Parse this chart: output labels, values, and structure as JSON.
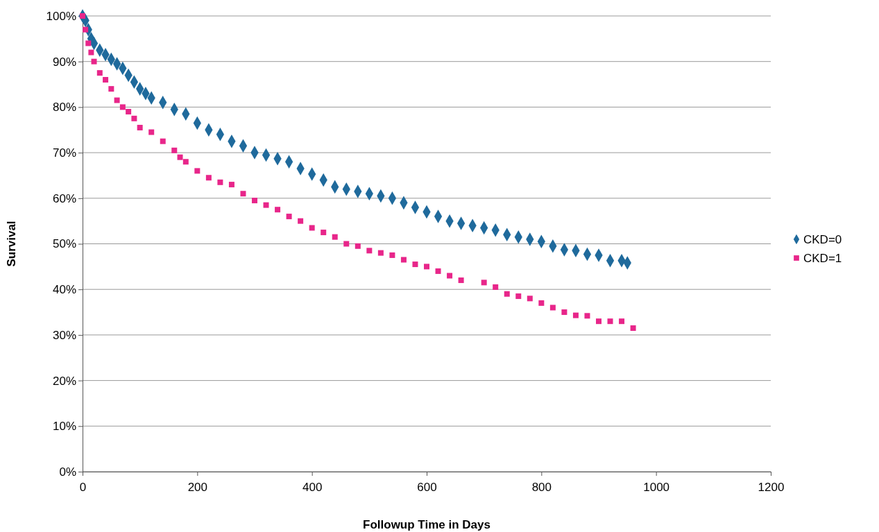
{
  "chart_data": {
    "type": "scatter",
    "xlabel": "Followup Time in Days",
    "ylabel": "Survival",
    "xlim": [
      0,
      1200
    ],
    "xticks": [
      0,
      200,
      400,
      600,
      800,
      1000,
      1200
    ],
    "ylim": [
      0,
      100
    ],
    "yticks": [
      {
        "value": 0,
        "label": "0%"
      },
      {
        "value": 10,
        "label": "10%"
      },
      {
        "value": 20,
        "label": "20%"
      },
      {
        "value": 30,
        "label": "30%"
      },
      {
        "value": 40,
        "label": "40%"
      },
      {
        "value": 50,
        "label": "50%"
      },
      {
        "value": 60,
        "label": "60%"
      },
      {
        "value": 70,
        "label": "70%"
      },
      {
        "value": 80,
        "label": "80%"
      },
      {
        "value": 90,
        "label": "90%"
      },
      {
        "value": 100,
        "label": "100%"
      }
    ],
    "grid": "y",
    "legend": "right",
    "series": [
      {
        "name": "CKD=0",
        "color": "#1f6a9c",
        "marker": "diamond",
        "x": [
          0,
          5,
          10,
          15,
          20,
          30,
          40,
          50,
          60,
          70,
          80,
          90,
          100,
          110,
          120,
          140,
          160,
          180,
          200,
          220,
          240,
          260,
          280,
          300,
          320,
          340,
          360,
          380,
          400,
          420,
          440,
          460,
          480,
          500,
          520,
          540,
          560,
          580,
          600,
          620,
          640,
          660,
          680,
          700,
          720,
          740,
          760,
          780,
          800,
          820,
          840,
          860,
          880,
          900,
          920,
          940,
          950
        ],
        "values": [
          100,
          99,
          97,
          95,
          94,
          92.5,
          91.5,
          90.5,
          89.5,
          88.5,
          87,
          85.5,
          84,
          83,
          82,
          81,
          79.5,
          78.5,
          76.5,
          75,
          74,
          72.5,
          71.5,
          70,
          69.5,
          68.7,
          68,
          66.5,
          65.3,
          64,
          62.5,
          62,
          61.5,
          61,
          60.5,
          60,
          59,
          58,
          57,
          56,
          55,
          54.5,
          54,
          53.5,
          53,
          52,
          51.5,
          51,
          50.5,
          49.5,
          48.7,
          48.5,
          47.7,
          47.5,
          46.3,
          46.3,
          45.8
        ]
      },
      {
        "name": "CKD=1",
        "color": "#e8268a",
        "marker": "square",
        "x": [
          0,
          5,
          10,
          15,
          20,
          30,
          40,
          50,
          60,
          70,
          80,
          90,
          100,
          120,
          140,
          160,
          170,
          180,
          200,
          220,
          240,
          260,
          280,
          300,
          320,
          340,
          360,
          380,
          400,
          420,
          440,
          460,
          480,
          500,
          520,
          540,
          560,
          580,
          600,
          620,
          640,
          660,
          700,
          720,
          740,
          760,
          780,
          800,
          820,
          840,
          860,
          880,
          900,
          920,
          940,
          960
        ],
        "values": [
          100,
          97,
          94,
          92,
          90,
          87.5,
          86,
          84,
          81.5,
          80,
          79,
          77.5,
          75.5,
          74.5,
          72.5,
          70.5,
          69,
          68,
          66,
          64.5,
          63.5,
          63,
          61,
          59.5,
          58.5,
          57.5,
          56,
          55,
          53.5,
          52.5,
          51.5,
          50,
          49.5,
          48.5,
          48,
          47.5,
          46.5,
          45.5,
          45,
          44,
          43,
          42,
          41.5,
          40.5,
          39,
          38.5,
          38,
          37,
          36,
          35,
          34.3,
          34.2,
          33,
          33,
          33,
          31.5
        ]
      }
    ]
  }
}
